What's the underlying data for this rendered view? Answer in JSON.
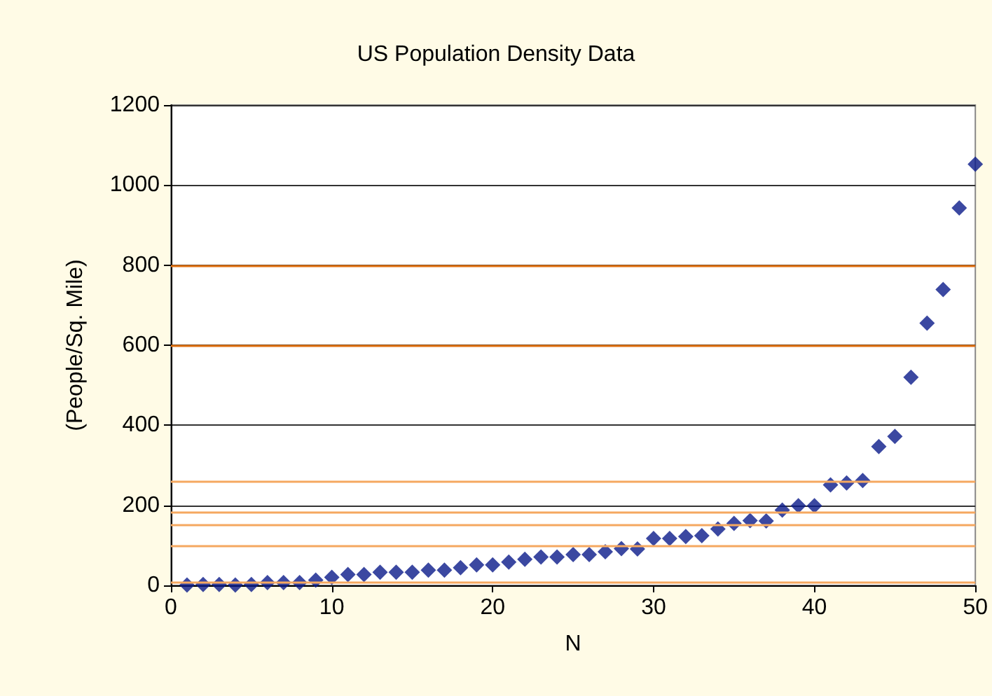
{
  "chart_data": {
    "type": "scatter",
    "title": "US Population Density Data",
    "xlabel": "N",
    "ylabel": "(People/Sq. Mile)",
    "x": [
      1,
      2,
      3,
      4,
      5,
      6,
      7,
      8,
      9,
      10,
      11,
      12,
      13,
      14,
      15,
      16,
      17,
      18,
      19,
      20,
      21,
      22,
      23,
      24,
      25,
      26,
      27,
      28,
      29,
      30,
      31,
      32,
      33,
      34,
      35,
      36,
      37,
      38,
      39,
      40,
      41,
      42,
      43,
      44,
      45,
      46,
      47,
      48,
      49,
      50
    ],
    "series": [
      {
        "color": "#0a1a8a",
        "values": [
          1,
          2,
          2,
          1,
          2,
          7,
          7,
          7,
          13,
          20,
          27,
          27,
          33,
          33,
          33,
          38,
          38,
          44,
          51,
          51,
          58,
          65,
          71,
          71,
          77,
          77,
          84,
          92,
          91,
          117,
          117,
          122,
          124,
          141,
          155,
          162,
          161,
          188,
          199,
          199,
          251,
          256,
          262,
          347,
          372,
          520,
          655,
          739,
          943,
          1052
        ]
      }
    ],
    "xlim": [
      0,
      50
    ],
    "xticks": [
      0,
      10,
      20,
      30,
      40,
      50
    ],
    "ylim": [
      0,
      1200
    ],
    "yticks": [
      0,
      200,
      400,
      600,
      800,
      1000,
      1200
    ],
    "grid": "y",
    "marker": "diamond",
    "ref_lines": [
      {
        "axis": "y",
        "value": 600,
        "color": "#e07010"
      },
      {
        "axis": "y",
        "value": 800,
        "color": "#e07010"
      },
      {
        "axis": "y",
        "value": 260,
        "color": "#f5a860"
      },
      {
        "axis": "y",
        "value": 183,
        "color": "#f5a860"
      },
      {
        "axis": "y",
        "value": 151,
        "color": "#f5a860"
      },
      {
        "axis": "y",
        "value": 99,
        "color": "#f5a860"
      },
      {
        "axis": "y",
        "value": 9,
        "color": "#f5a860"
      }
    ]
  }
}
